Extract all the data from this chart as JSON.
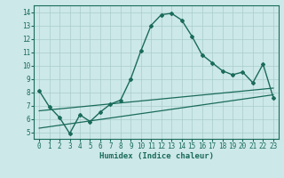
{
  "x": [
    0,
    1,
    2,
    3,
    4,
    5,
    6,
    7,
    8,
    9,
    10,
    11,
    12,
    13,
    14,
    15,
    16,
    17,
    18,
    19,
    20,
    21,
    22,
    23
  ],
  "line1": [
    8.1,
    6.9,
    6.1,
    4.9,
    6.3,
    5.8,
    6.5,
    7.1,
    7.4,
    9.0,
    11.1,
    13.0,
    13.8,
    13.9,
    13.4,
    12.2,
    10.8,
    10.2,
    9.6,
    9.3,
    9.5,
    8.7,
    10.1,
    7.6
  ],
  "line2_x": [
    0,
    23
  ],
  "line2_y": [
    5.3,
    7.8
  ],
  "line3_x": [
    0,
    23
  ],
  "line3_y": [
    6.6,
    8.3
  ],
  "color": "#1a6b5a",
  "bg_color": "#cce8e8",
  "grid_color": "#aacccc",
  "xlabel": "Humidex (Indice chaleur)",
  "xlim": [
    -0.5,
    23.5
  ],
  "ylim": [
    4.5,
    14.5
  ],
  "yticks": [
    5,
    6,
    7,
    8,
    9,
    10,
    11,
    12,
    13,
    14
  ],
  "xticks": [
    0,
    1,
    2,
    3,
    4,
    5,
    6,
    7,
    8,
    9,
    10,
    11,
    12,
    13,
    14,
    15,
    16,
    17,
    18,
    19,
    20,
    21,
    22,
    23
  ]
}
